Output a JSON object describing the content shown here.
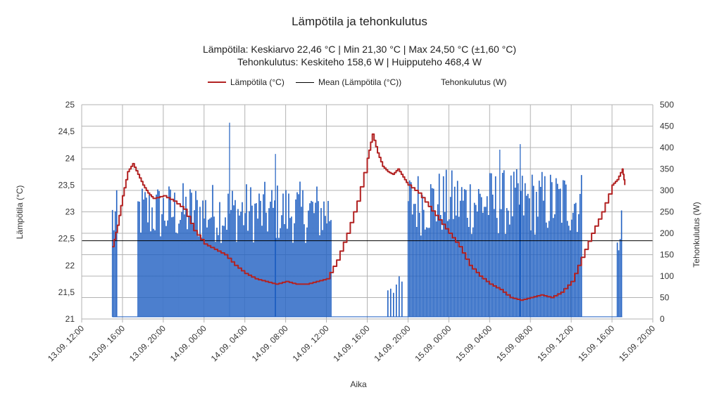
{
  "title": "Lämpötila ja tehonkulutus",
  "subtitle_line1": "Lämpötila: Keskiarvo 22,46 °C   |   Min 21,30 °C   |   Max 24,50 °C  (±1,60 °C)",
  "subtitle_line2": "Tehonkulutus: Keskiteho 158,6 W   |   Huipputeho 468,4 W",
  "legend": [
    {
      "label": "Lämpötila (°C)",
      "color": "#b22222"
    },
    {
      "label": "Mean (Lämpötila (°C))",
      "color": "#000000"
    },
    {
      "label": "Tehonkulutus (W)",
      "color": "#1f5fc1"
    }
  ],
  "chart_data": {
    "type": "line",
    "title": "Lämpötila ja tehonkulutus",
    "xlabel": "Aika",
    "ylabel": "Lämpötila (°C)",
    "y2label": "Tehonkulutus (W)",
    "xlim": [
      "13.09. 12:00",
      "15.09. 20:00"
    ],
    "ylim": [
      21,
      25
    ],
    "y2lim": [
      0,
      500
    ],
    "grid": true,
    "legend_position": "top",
    "x_ticks": [
      "13.09. 12:00",
      "13.09. 16:00",
      "13.09. 20:00",
      "14.09. 00:00",
      "14.09. 04:00",
      "14.09. 08:00",
      "14.09. 12:00",
      "14.09. 16:00",
      "14.09. 20:00",
      "15.09. 00:00",
      "15.09. 04:00",
      "15.09. 08:00",
      "15.09. 12:00",
      "15.09. 16:00",
      "15.09. 20:00"
    ],
    "y_ticks": [
      "21",
      "21,5",
      "22",
      "22,5",
      "23",
      "23,5",
      "24",
      "24,5",
      "25"
    ],
    "y2_ticks": [
      "0",
      "50",
      "100",
      "150",
      "200",
      "250",
      "300",
      "350",
      "400",
      "450",
      "500"
    ],
    "series": [
      {
        "name": "Lämpötila (°C)",
        "color": "#b22222",
        "x": [
          "13.09. 15:00",
          "13.09. 15:30",
          "13.09. 16:00",
          "13.09. 16:30",
          "13.09. 17:00",
          "13.09. 17:30",
          "13.09. 18:00",
          "13.09. 18:30",
          "13.09. 19:00",
          "13.09. 20:00",
          "13.09. 21:00",
          "13.09. 22:00",
          "13.09. 23:00",
          "14.09. 00:00",
          "14.09. 01:00",
          "14.09. 02:00",
          "14.09. 03:00",
          "14.09. 04:00",
          "14.09. 05:00",
          "14.09. 06:00",
          "14.09. 07:00",
          "14.09. 08:00",
          "14.09. 09:00",
          "14.09. 10:00",
          "14.09. 11:00",
          "14.09. 12:00",
          "14.09. 13:00",
          "14.09. 14:00",
          "14.09. 15:00",
          "14.09. 16:00",
          "14.09. 16:30",
          "14.09. 17:00",
          "14.09. 17:30",
          "14.09. 18:00",
          "14.09. 18:30",
          "14.09. 19:00",
          "14.09. 19:30",
          "14.09. 20:00",
          "14.09. 21:00",
          "14.09. 22:00",
          "14.09. 23:00",
          "15.09. 00:00",
          "15.09. 01:00",
          "15.09. 02:00",
          "15.09. 03:00",
          "15.09. 04:00",
          "15.09. 05:00",
          "15.09. 06:00",
          "15.09. 07:00",
          "15.09. 08:00",
          "15.09. 09:00",
          "15.09. 10:00",
          "15.09. 11:00",
          "15.09. 12:00",
          "15.09. 13:00",
          "15.09. 14:00",
          "15.09. 15:00",
          "15.09. 16:00",
          "15.09. 16:30",
          "15.09. 17:00",
          "15.09. 17:15"
        ],
        "values": [
          22.35,
          22.75,
          23.3,
          23.75,
          23.9,
          23.7,
          23.5,
          23.35,
          23.25,
          23.3,
          23.2,
          23.05,
          22.65,
          22.4,
          22.3,
          22.2,
          22.0,
          21.85,
          21.75,
          21.7,
          21.65,
          21.7,
          21.65,
          21.65,
          21.7,
          21.75,
          22.1,
          22.6,
          23.2,
          24.0,
          24.45,
          24.1,
          23.85,
          23.75,
          23.7,
          23.8,
          23.65,
          23.5,
          23.35,
          23.1,
          22.85,
          22.6,
          22.35,
          22.0,
          21.8,
          21.65,
          21.55,
          21.4,
          21.35,
          21.4,
          21.45,
          21.4,
          21.5,
          21.7,
          22.15,
          22.6,
          23.0,
          23.5,
          23.6,
          23.8,
          23.5
        ]
      },
      {
        "name": "Mean (Lämpötila (°C))",
        "color": "#000000",
        "values": [
          22.46
        ]
      },
      {
        "name": "Tehonkulutus (W)",
        "color": "#1f5fc1",
        "blocks": [
          {
            "from": "13.09. 15:00",
            "to": "13.09. 15:30",
            "typical_peak": 300
          },
          {
            "from": "13.09. 17:30",
            "to": "14.09. 12:30",
            "typical_peak": 320
          },
          {
            "from": "14.09. 18:00",
            "to": "14.09. 19:30",
            "typical_peak": 100
          },
          {
            "from": "14.09. 20:00",
            "to": "15.09. 13:00",
            "typical_peak": 350
          },
          {
            "from": "15.09. 16:30",
            "to": "15.09. 17:00",
            "typical_peak": 280
          }
        ],
        "peaks": [
          {
            "x": "14.09. 02:30",
            "value": 458
          },
          {
            "x": "15.09. 07:00",
            "value": 408
          },
          {
            "x": "15.09. 05:00",
            "value": 395
          },
          {
            "x": "14.09. 07:00",
            "value": 385
          }
        ],
        "baseline": 5,
        "max": 468.4,
        "mean": 158.6
      }
    ]
  }
}
